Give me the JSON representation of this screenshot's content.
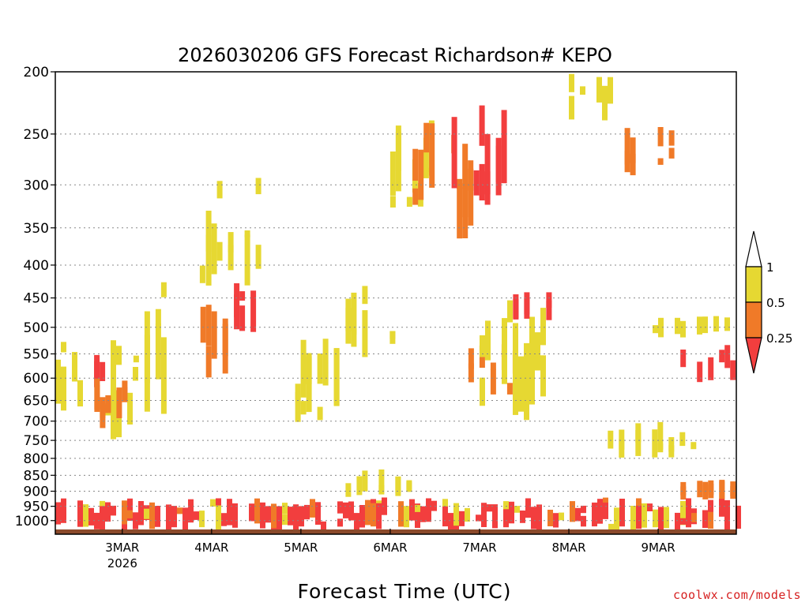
{
  "chart_data": {
    "type": "heatmap",
    "title": "2026030206 GFS Forecast Richardson# KEPO",
    "xlabel": "Forecast Time (UTC)",
    "ylabel": "",
    "y_scale": "pressure (log), inverted",
    "ylim": [
      1050,
      200
    ],
    "y_ticks": [
      200,
      250,
      300,
      350,
      400,
      450,
      500,
      550,
      600,
      650,
      700,
      750,
      800,
      850,
      900,
      950,
      1000
    ],
    "x_start": "2026-03-02T06:00Z",
    "x_end": "2026-03-09T21:00Z",
    "x_ticks": [
      {
        "t": "2026-03-03T00:00Z",
        "label": "3MAR",
        "sublabel": "2026"
      },
      {
        "t": "2026-03-04T00:00Z",
        "label": "4MAR"
      },
      {
        "t": "2026-03-05T00:00Z",
        "label": "5MAR"
      },
      {
        "t": "2026-03-06T00:00Z",
        "label": "6MAR"
      },
      {
        "t": "2026-03-07T00:00Z",
        "label": "7MAR"
      },
      {
        "t": "2026-03-08T00:00Z",
        "label": "8MAR"
      },
      {
        "t": "2026-03-09T00:00Z",
        "label": "9MAR"
      }
    ],
    "grid": "dotted horizontal at pressure ticks",
    "colorbar": {
      "position": "right",
      "labels": [
        "1",
        "0.5",
        "0.25"
      ],
      "bins": [
        {
          "range": "0.5-1",
          "color": "#e6d832"
        },
        {
          "range": "0.25-0.5",
          "color": "#f07a28"
        },
        {
          "range": "<0.25",
          "color": "#f23e3e"
        }
      ]
    },
    "colors": {
      "low": "#f23e3e",
      "mid": "#f07a28",
      "high": "#e6d832",
      "ground": "#8b4a2b"
    },
    "regions": [
      {
        "t0": "2026-03-02T06:00Z",
        "t1": "2026-03-03T03:00Z",
        "p0": 520,
        "p1": 780,
        "bin": "high"
      },
      {
        "t0": "2026-03-02T09:00Z",
        "t1": "2026-03-02T18:00Z",
        "p0": 550,
        "p1": 620,
        "bin": "low"
      },
      {
        "t0": "2026-03-02T15:00Z",
        "t1": "2026-03-03T00:00Z",
        "p0": 600,
        "p1": 720,
        "bin": "mid"
      },
      {
        "t0": "2026-03-03T03:00Z",
        "t1": "2026-03-04T00:00Z",
        "p0": 350,
        "p1": 720,
        "bin": "high"
      },
      {
        "t0": "2026-03-03T18:00Z",
        "t1": "2026-03-04T12:00Z",
        "p0": 290,
        "p1": 450,
        "bin": "high"
      },
      {
        "t0": "2026-03-03T21:00Z",
        "t1": "2026-03-04T06:00Z",
        "p0": 450,
        "p1": 600,
        "bin": "mid"
      },
      {
        "t0": "2026-03-04T06:00Z",
        "t1": "2026-03-04T15:00Z",
        "p0": 420,
        "p1": 520,
        "bin": "low"
      },
      {
        "t0": "2026-03-04T18:00Z",
        "t1": "2026-03-05T09:00Z",
        "p0": 520,
        "p1": 720,
        "bin": "high"
      },
      {
        "t0": "2026-03-05T12:00Z",
        "t1": "2026-03-06T00:00Z",
        "p0": 430,
        "p1": 560,
        "bin": "high"
      },
      {
        "t0": "2026-03-05T12:00Z",
        "t1": "2026-03-06T06:00Z",
        "p0": 830,
        "p1": 920,
        "bin": "high"
      },
      {
        "t0": "2026-03-06T00:00Z",
        "t1": "2026-03-06T12:00Z",
        "p0": 230,
        "p1": 330,
        "bin": "high"
      },
      {
        "t0": "2026-03-06T06:00Z",
        "t1": "2026-03-06T21:00Z",
        "p0": 240,
        "p1": 380,
        "bin": "mid"
      },
      {
        "t0": "2026-03-06T15:00Z",
        "t1": "2026-03-07T06:00Z",
        "p0": 220,
        "p1": 330,
        "bin": "low"
      },
      {
        "t0": "2026-03-06T21:00Z",
        "t1": "2026-03-07T12:00Z",
        "p0": 530,
        "p1": 640,
        "bin": "mid"
      },
      {
        "t0": "2026-03-07T00:00Z",
        "t1": "2026-03-07T18:00Z",
        "p0": 450,
        "p1": 700,
        "bin": "high"
      },
      {
        "t0": "2026-03-07T09:00Z",
        "t1": "2026-03-07T18:00Z",
        "p0": 440,
        "p1": 490,
        "bin": "low"
      },
      {
        "t0": "2026-03-08T00:00Z",
        "t1": "2026-03-08T12:00Z",
        "p0": 200,
        "p1": 240,
        "bin": "high"
      },
      {
        "t0": "2026-03-08T12:00Z",
        "t1": "2026-03-09T06:00Z",
        "p0": 240,
        "p1": 290,
        "bin": "mid"
      },
      {
        "t0": "2026-03-08T21:00Z",
        "t1": "2026-03-09T21:00Z",
        "p0": 480,
        "p1": 520,
        "bin": "high"
      },
      {
        "t0": "2026-03-09T03:00Z",
        "t1": "2026-03-09T21:00Z",
        "p0": 530,
        "p1": 610,
        "bin": "low"
      },
      {
        "t0": "2026-03-08T06:00Z",
        "t1": "2026-03-09T12:00Z",
        "p0": 700,
        "p1": 800,
        "bin": "high"
      },
      {
        "t0": "2026-03-09T06:00Z",
        "t1": "2026-03-09T21:00Z",
        "p0": 860,
        "p1": 930,
        "bin": "mid"
      },
      {
        "t0": "2026-03-02T06:00Z",
        "t1": "2026-03-09T21:00Z",
        "p0": 920,
        "p1": 1040,
        "bin": "boundary"
      }
    ]
  },
  "credit": "coolwx.com/models"
}
